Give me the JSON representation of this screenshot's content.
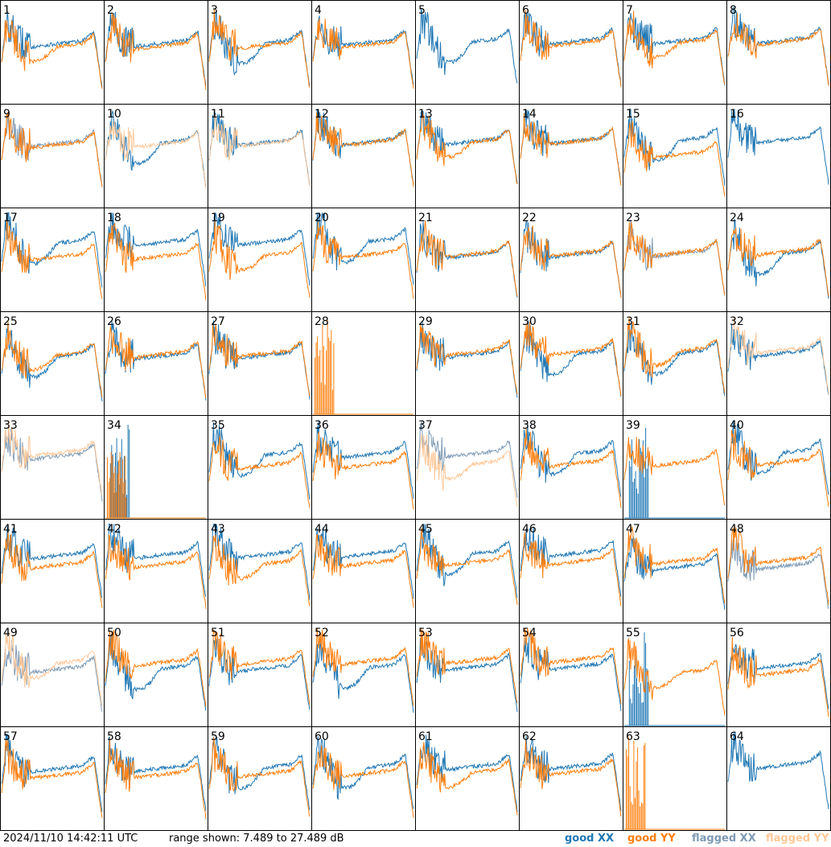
{
  "chart_data": {
    "type": "line",
    "panel_count": 64,
    "panel_labels": [
      "1",
      "2",
      "3",
      "4",
      "5",
      "6",
      "7",
      "8",
      "9",
      "10",
      "11",
      "12",
      "13",
      "14",
      "15",
      "16",
      "17",
      "18",
      "19",
      "20",
      "21",
      "22",
      "23",
      "24",
      "25",
      "26",
      "27",
      "28",
      "29",
      "30",
      "31",
      "32",
      "33",
      "34",
      "35",
      "36",
      "37",
      "38",
      "39",
      "40",
      "41",
      "42",
      "43",
      "44",
      "45",
      "46",
      "47",
      "48",
      "49",
      "50",
      "51",
      "52",
      "53",
      "54",
      "55",
      "56",
      "57",
      "58",
      "59",
      "60",
      "61",
      "62",
      "63",
      "64"
    ],
    "range_db": [
      7.489,
      27.489
    ],
    "timestamp": "2024/11/10 14:42:11 UTC",
    "range_label": "range shown: 7.489 to 27.489 dB",
    "legend": [
      {
        "label": "good XX",
        "color": "#1f77b4"
      },
      {
        "label": "good YY",
        "color": "#ff7f0e"
      },
      {
        "label": "flagged XX",
        "color": "#7f9bb5"
      },
      {
        "label": "flagged YY",
        "color": "#ffc899"
      }
    ],
    "panel_states": {
      "xx_flagged": [
        9,
        23,
        33,
        37,
        48,
        49
      ],
      "yy_flagged": [
        10,
        11,
        32,
        33,
        37,
        49
      ],
      "xx_missing": [
        28,
        63
      ],
      "yy_missing": [
        5,
        16,
        64
      ],
      "xx_spike_only": [
        34,
        39,
        55
      ],
      "yy_spike_only": [
        28,
        34,
        63
      ]
    }
  }
}
